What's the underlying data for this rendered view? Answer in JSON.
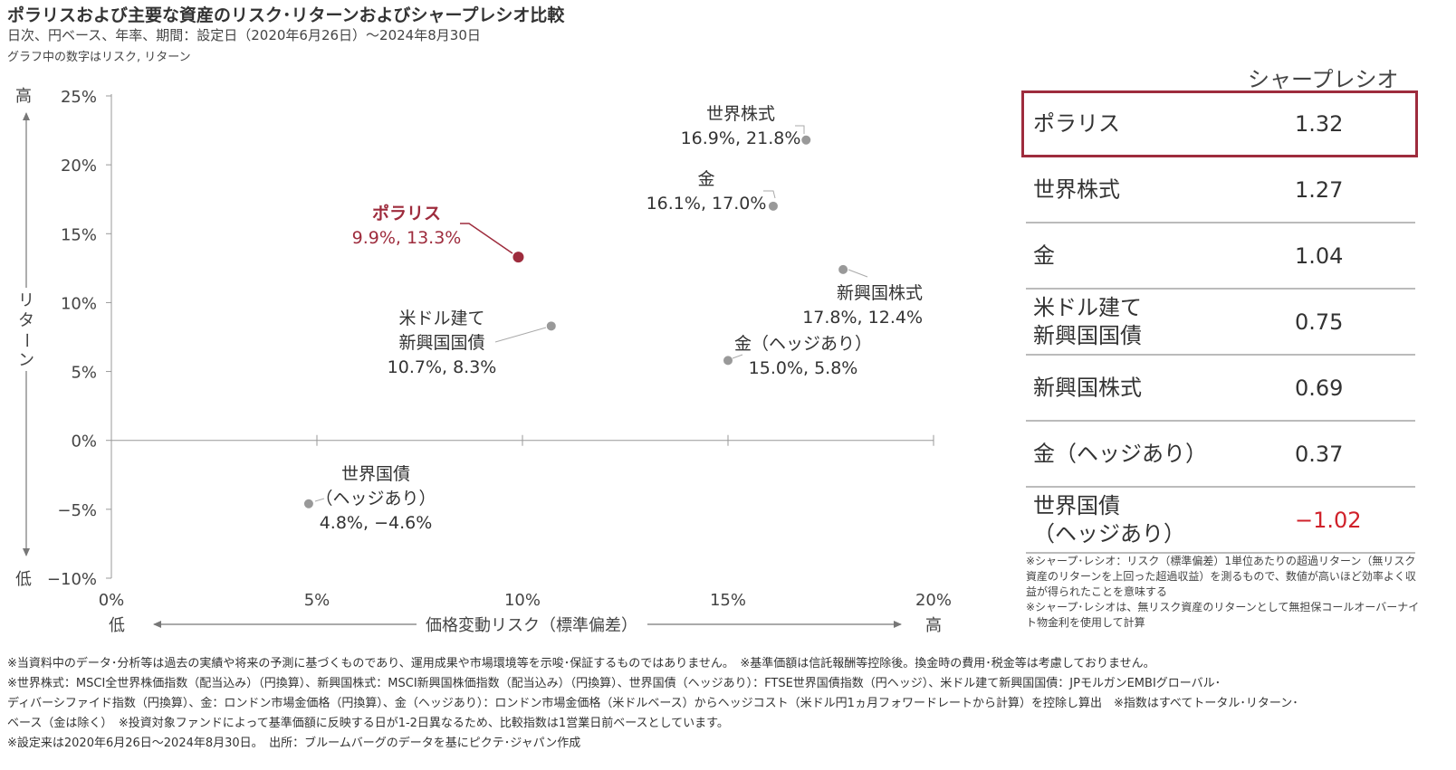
{
  "header": {
    "title": "ポラリスおよび主要な資産のリスク･リターンおよびシャープレシオ比較",
    "subtitle": "日次、円ベース、年率、期間：設定日（2020年6月26日）～2024年8月30日",
    "note": "グラフ中の数字はリスク, リターン"
  },
  "chart_data": {
    "type": "scatter",
    "xlabel": "価格変動リスク（標準偏差）",
    "ylabel": "リターン",
    "x_low": "低",
    "x_high": "高",
    "y_low": "低",
    "y_high": "高",
    "xlim": [
      0,
      20
    ],
    "ylim": [
      -10,
      25
    ],
    "x_ticks": [
      {
        "value": 0,
        "label": "0%"
      },
      {
        "value": 5,
        "label": "5%"
      },
      {
        "value": 10,
        "label": "10%"
      },
      {
        "value": 15,
        "label": "15%"
      },
      {
        "value": 20,
        "label": "20%"
      }
    ],
    "y_ticks": [
      {
        "value": 25,
        "label": "25%"
      },
      {
        "value": 20,
        "label": "20%"
      },
      {
        "value": 15,
        "label": "15%"
      },
      {
        "value": 10,
        "label": "10%"
      },
      {
        "value": 5,
        "label": "5%"
      },
      {
        "value": 0,
        "label": "0%"
      },
      {
        "value": -5,
        "label": "−5%"
      },
      {
        "value": -10,
        "label": "−10%"
      }
    ],
    "points": [
      {
        "name": "世界株式",
        "label_lines": [
          "世界株式",
          "16.9%, 21.8%"
        ],
        "x": 16.9,
        "y": 21.8,
        "color": "#999999"
      },
      {
        "name": "金",
        "label_lines": [
          "金",
          "16.1%, 17.0%"
        ],
        "x": 16.1,
        "y": 17.0,
        "color": "#999999"
      },
      {
        "name": "ポラリス",
        "label_lines": [
          "ポラリス",
          "9.9%, 13.3%"
        ],
        "x": 9.9,
        "y": 13.3,
        "color": "#9e2c3d"
      },
      {
        "name": "新興国株式",
        "label_lines": [
          "新興国株式",
          "17.8%, 12.4%"
        ],
        "x": 17.8,
        "y": 12.4,
        "color": "#999999"
      },
      {
        "name": "米ドル建て新興国国債",
        "label_lines": [
          "米ドル建て",
          "新興国国債",
          "10.7%, 8.3%"
        ],
        "x": 10.7,
        "y": 8.3,
        "color": "#999999"
      },
      {
        "name": "金（ヘッジあり）",
        "label_lines": [
          "金（ヘッジあり）",
          "15.0%, 5.8%"
        ],
        "x": 15.0,
        "y": 5.8,
        "color": "#999999"
      },
      {
        "name": "世界国債（ヘッジあり）",
        "label_lines": [
          "世界国債",
          "（ヘッジあり）",
          "4.8%, −4.6%"
        ],
        "x": 4.8,
        "y": -4.6,
        "color": "#999999"
      }
    ]
  },
  "sharpe": {
    "header": "シャープレシオ",
    "rows": [
      {
        "name_lines": [
          "ポラリス"
        ],
        "value": "1.32",
        "highlight": true,
        "negative": false
      },
      {
        "name_lines": [
          "世界株式"
        ],
        "value": "1.27",
        "highlight": false,
        "negative": false
      },
      {
        "name_lines": [
          "金"
        ],
        "value": "1.04",
        "highlight": false,
        "negative": false
      },
      {
        "name_lines": [
          "米ドル建て",
          "新興国国債"
        ],
        "value": "0.75",
        "highlight": false,
        "negative": false
      },
      {
        "name_lines": [
          "新興国株式"
        ],
        "value": "0.69",
        "highlight": false,
        "negative": false
      },
      {
        "name_lines": [
          "金（ヘッジあり）"
        ],
        "value": "0.37",
        "highlight": false,
        "negative": false
      },
      {
        "name_lines": [
          "世界国債",
          "（ヘッジあり）"
        ],
        "value": "−1.02",
        "highlight": false,
        "negative": true
      }
    ],
    "notes": [
      "※シャープ･レシオ：リスク（標準偏差）1単位あたりの超過リターン（無リスク資産のリターンを上回った超過収益）を測るもので、数値が高いほど効率よく収益が得られたことを意味する",
      "※シャープ･レシオは、無リスク資産のリターンとして無担保コールオーバーナイト物金利を使用して計算"
    ]
  },
  "footnotes": [
    "※当資料中のデータ･分析等は過去の実績や将来の予測に基づくものであり、運用成果や市場環境等を示唆･保証するものではありません。　※基準価額は信託報酬等控除後。換金時の費用･税金等は考慮しておりません。",
    "※世界株式：MSCI全世界株価指数（配当込み）（円換算）、新興国株式：MSCI新興国株価指数（配当込み）（円換算）、世界国債（ヘッジあり）：FTSE世界国債指数（円ヘッジ）、米ドル建て新興国国債：JPモルガンEMBIグローバル･",
    "ディバーシファイド指数（円換算）、金：ロンドン市場金価格（円換算）、金（ヘッジあり）：ロンドン市場金価格（米ドルベース）からヘッジコスト（米ドル円1ヵ月フォワードレートから計算）を控除し算出　※指数はすべてトータル･リターン･",
    "ベース（金は除く）　※投資対象ファンドによって基準価額に反映する日が1-2日異なるため、比較指数は1営業日前ベースとしています。",
    "※設定来は2020年6月26日～2024年8月30日。　出所：ブルームバーグのデータを基にピクテ･ジャパン作成"
  ]
}
